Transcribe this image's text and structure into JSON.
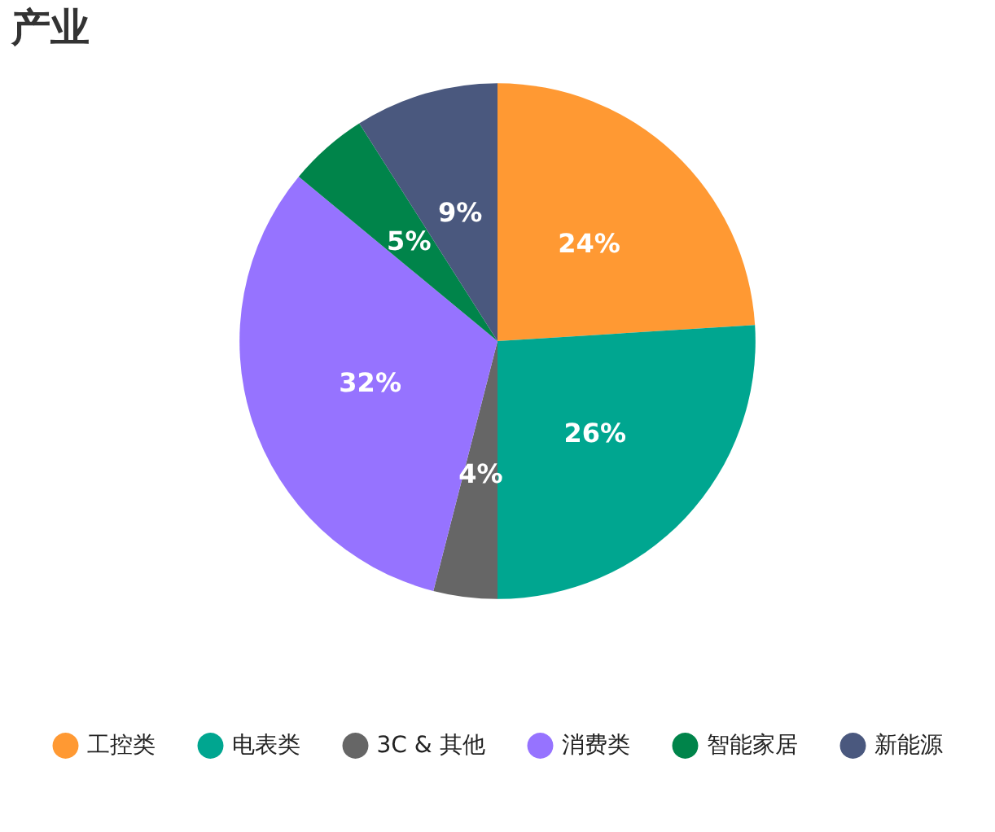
{
  "chart_data": {
    "type": "pie",
    "title": "产业",
    "categories": [
      "工控类",
      "电表类",
      "3C & 其他",
      "消费类",
      "智能家居",
      "新能源"
    ],
    "values": [
      24,
      26,
      4,
      32,
      5,
      9
    ],
    "value_labels": [
      "24%",
      "26%",
      "4%",
      "32%",
      "5%",
      "9%"
    ],
    "colors": [
      "#ff9933",
      "#00a690",
      "#666666",
      "#9673ff",
      "#00844a",
      "#4a587e"
    ],
    "legend": "bottom"
  }
}
